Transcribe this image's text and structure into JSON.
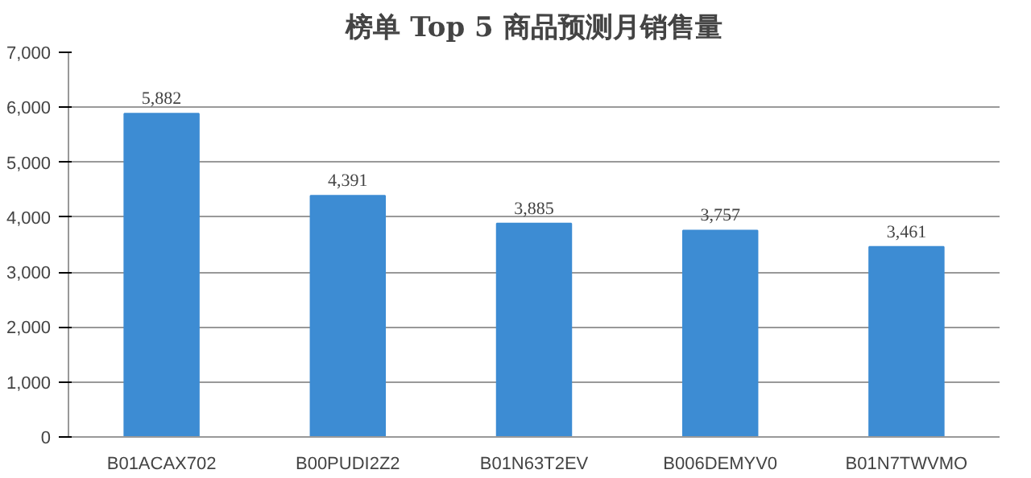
{
  "chart_data": {
    "type": "bar",
    "title": "榜单 Top 5 商品预测月销售量",
    "categories": [
      "B01ACAX702",
      "B00PUDI2Z2",
      "B01N63T2EV",
      "B006DEMYV0",
      "B01N7TWVMO"
    ],
    "values": [
      5882,
      4391,
      3885,
      3757,
      3461
    ],
    "value_labels": [
      "5,882",
      "4,391",
      "3,885",
      "3,757",
      "3,461"
    ],
    "color": "#3d8cd3",
    "ylim": [
      0,
      7000
    ],
    "yticks": [
      0,
      {
        "value": 1000,
        "label": "1,000"
      },
      {
        "value": 2000,
        "label": "2,000"
      },
      {
        "value": 3000,
        "label": "3,000"
      },
      {
        "value": 4000,
        "label": "4,000"
      },
      {
        "value": 5000,
        "label": "5,000"
      },
      {
        "value": 6000,
        "label": "6,000"
      },
      {
        "value": 7000,
        "label": "7,000"
      }
    ],
    "grid": "y"
  }
}
